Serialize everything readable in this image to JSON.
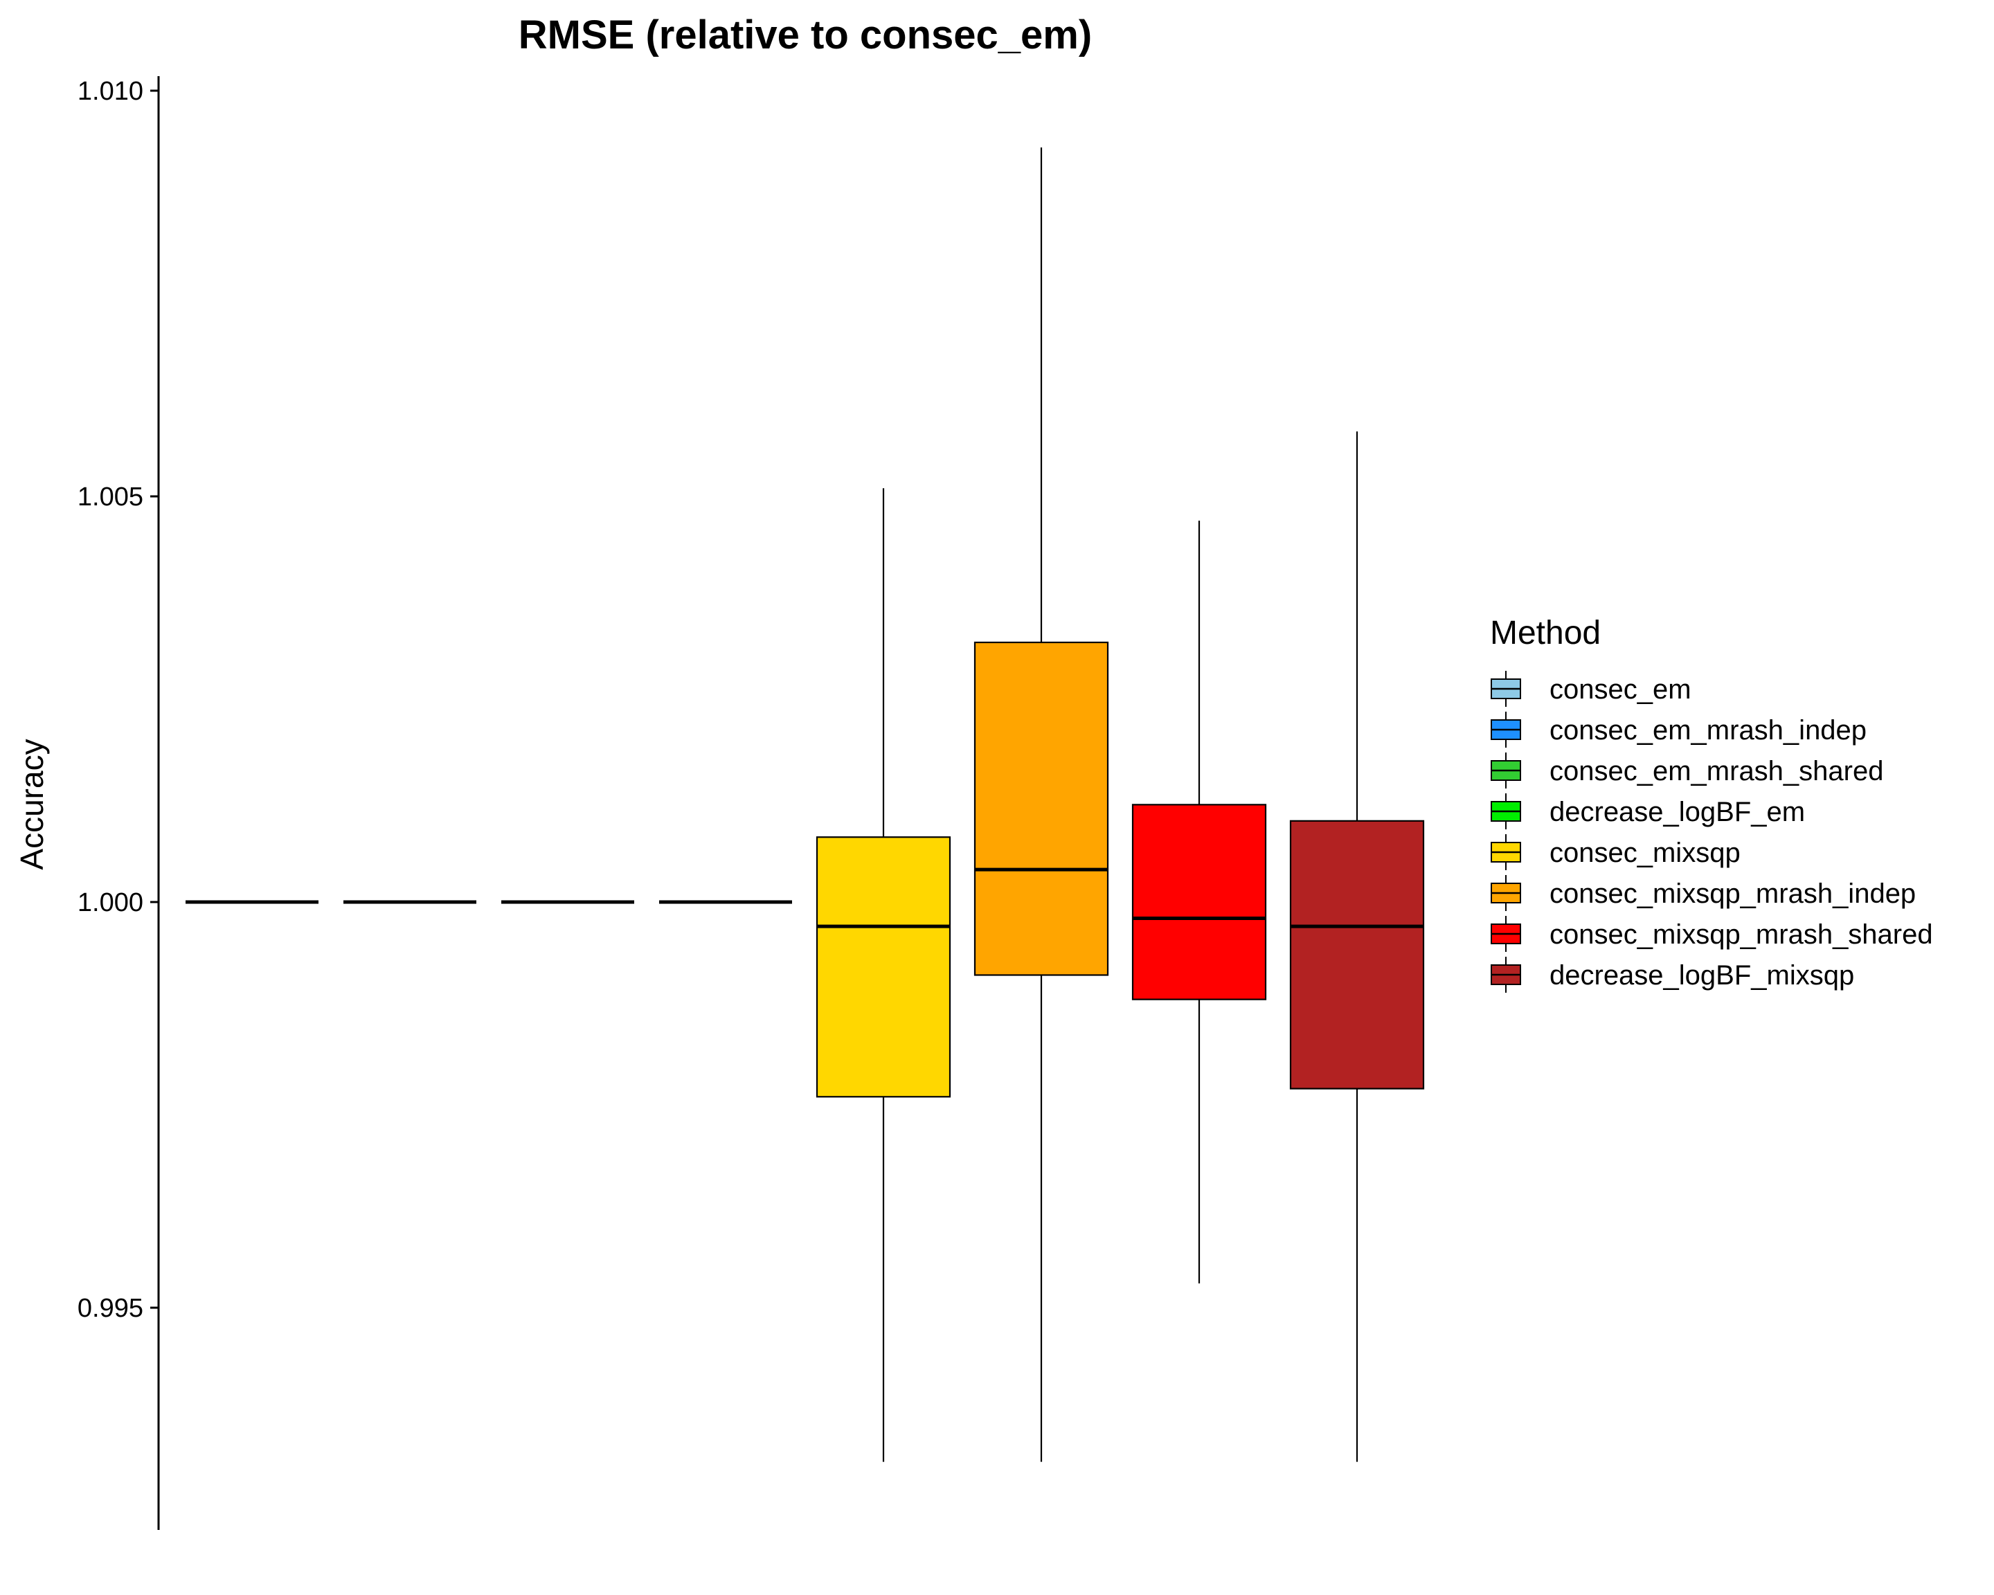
{
  "chart_data": {
    "type": "box",
    "title": "RMSE (relative to consec_em)",
    "xlabel": "",
    "ylabel": "Accuracy",
    "ylim": [
      0.9921,
      1.0102
    ],
    "yticks": [
      {
        "value": 0.995,
        "label": "0.995"
      },
      {
        "value": 1.0,
        "label": "1.000"
      },
      {
        "value": 1.005,
        "label": "1.005"
      },
      {
        "value": 1.01,
        "label": "1.010"
      }
    ],
    "grid": false,
    "legend": {
      "title": "Method",
      "position": "right"
    },
    "series": [
      {
        "name": "consec_em",
        "color": "#8ecae6",
        "min": 1.0,
        "q1": 1.0,
        "median": 1.0,
        "q3": 1.0,
        "max": 1.0
      },
      {
        "name": "consec_em_mrash_indep",
        "color": "#1e90ff",
        "min": 1.0,
        "q1": 1.0,
        "median": 1.0,
        "q3": 1.0,
        "max": 1.0
      },
      {
        "name": "consec_em_mrash_shared",
        "color": "#32cd32",
        "min": 1.0,
        "q1": 1.0,
        "median": 1.0,
        "q3": 1.0,
        "max": 1.0
      },
      {
        "name": "decrease_logBF_em",
        "color": "#00ee00",
        "min": 1.0,
        "q1": 1.0,
        "median": 1.0,
        "q3": 1.0,
        "max": 1.0
      },
      {
        "name": "consec_mixsqp",
        "color": "#ffd700",
        "min": 0.9931,
        "q1": 0.9976,
        "median": 0.9997,
        "q3": 1.0008,
        "max": 1.0051
      },
      {
        "name": "consec_mixsqp_mrash_indep",
        "color": "#ffa500",
        "min": 0.9931,
        "q1": 0.9991,
        "median": 1.0004,
        "q3": 1.0032,
        "max": 1.0093
      },
      {
        "name": "consec_mixsqp_mrash_shared",
        "color": "#ff0000",
        "min": 0.9953,
        "q1": 0.9988,
        "median": 0.9998,
        "q3": 1.0012,
        "max": 1.0047
      },
      {
        "name": "decrease_logBF_mixsqp",
        "color": "#b22222",
        "min": 0.9931,
        "q1": 0.9977,
        "median": 0.9997,
        "q3": 1.001,
        "max": 1.0058
      }
    ]
  }
}
